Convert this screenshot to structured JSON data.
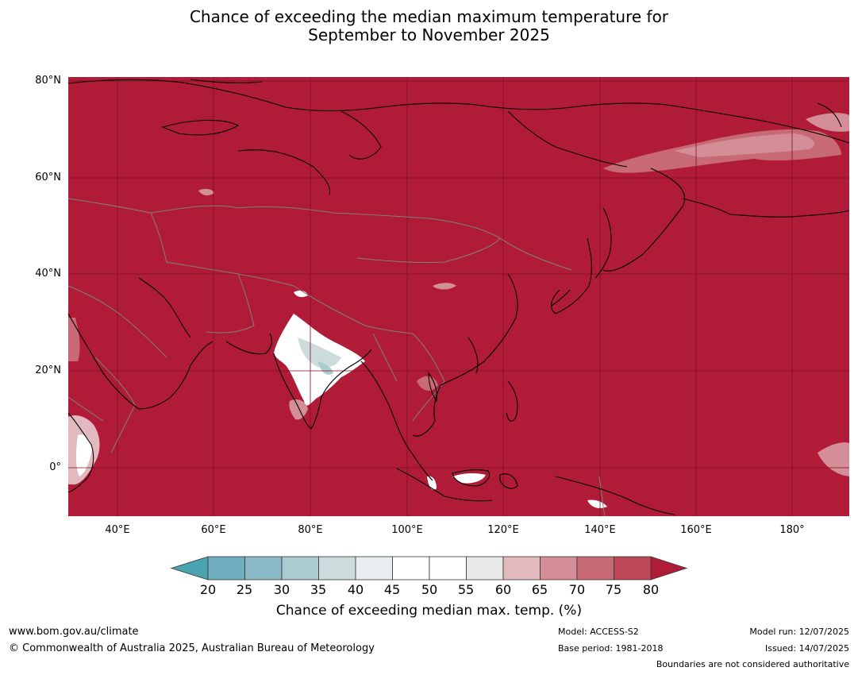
{
  "title": {
    "line1": "Chance of exceeding the median maximum temperature for",
    "line2": "September to November 2025"
  },
  "map": {
    "latitude_labels": [
      "80°N",
      "60°N",
      "40°N",
      "20°N",
      "0°"
    ],
    "longitude_labels": [
      "40°E",
      "60°E",
      "80°E",
      "100°E",
      "120°E",
      "140°E",
      "160°E",
      "180°"
    ],
    "dominant_color": "#b01b38",
    "coastline_color": "#000000",
    "border_color": "#808080",
    "gridline_color": "#7a1026"
  },
  "colorbar": {
    "ticks": [
      "20",
      "25",
      "30",
      "35",
      "40",
      "45",
      "50",
      "55",
      "60",
      "65",
      "70",
      "75",
      "80"
    ],
    "colors": [
      "#4aa3b0",
      "#6dadbd",
      "#8bb9c5",
      "#aacbd0",
      "#ccdcdd",
      "#e9eff1",
      "#ffffff",
      "#ffffff",
      "#e8e8e8",
      "#e2b9bf",
      "#d48e97",
      "#c86a75",
      "#bc4757",
      "#b01b38"
    ],
    "title": "Chance of exceeding median max. temp. (%)"
  },
  "footer": {
    "website": "www.bom.gov.au/climate",
    "copyright": "© Commonwealth of Australia 2025, Australian Bureau of Meteorology",
    "model": "Model: ACCESS-S2",
    "base_period": "Base period: 1981-2018",
    "model_run": "Model run: 12/07/2025",
    "issued": "Issued: 14/07/2025",
    "boundaries_note": "Boundaries are not considered authoritative"
  }
}
